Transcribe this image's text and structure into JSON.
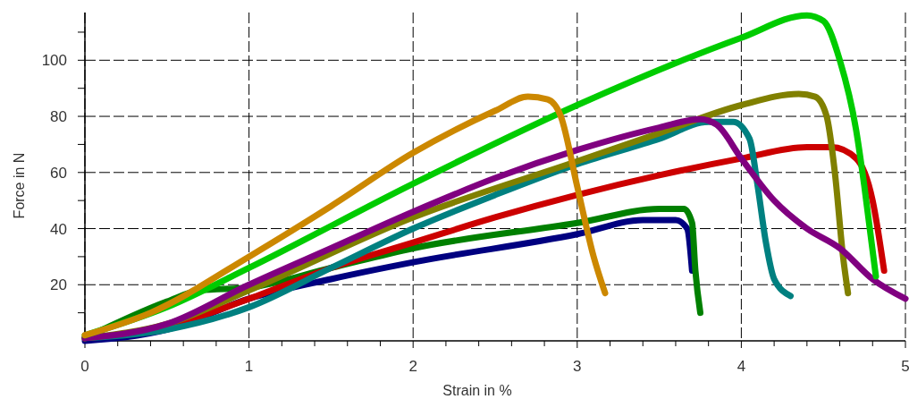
{
  "chart_data": {
    "type": "line",
    "xlabel": "Strain in %",
    "ylabel": "Force in N",
    "xlim": [
      0,
      5
    ],
    "ylim": [
      0,
      117
    ],
    "xticks": [
      0,
      {
        "value": 0.2,
        "label": null
      },
      {
        "value": 0.4,
        "label": null
      },
      {
        "value": 0.6,
        "label": null
      },
      {
        "value": 0.8,
        "label": null
      },
      1,
      {
        "value": 1.2,
        "label": null
      },
      {
        "value": 1.4,
        "label": null
      },
      {
        "value": 1.6,
        "label": null
      },
      {
        "value": 1.8,
        "label": null
      },
      2,
      {
        "value": 2.2,
        "label": null
      },
      {
        "value": 2.4,
        "label": null
      },
      {
        "value": 2.6,
        "label": null
      },
      {
        "value": 2.8,
        "label": null
      },
      3,
      {
        "value": 3.2,
        "label": null
      },
      {
        "value": 3.4,
        "label": null
      },
      {
        "value": 3.6,
        "label": null
      },
      {
        "value": 3.8,
        "label": null
      },
      4,
      {
        "value": 4.2,
        "label": null
      },
      {
        "value": 4.4,
        "label": null
      },
      {
        "value": 4.6,
        "label": null
      },
      {
        "value": 4.8,
        "label": null
      },
      5
    ],
    "yticks": [
      {
        "value": 10,
        "label": null
      },
      20,
      {
        "value": 30,
        "label": null
      },
      40,
      {
        "value": 50,
        "label": null
      },
      60,
      {
        "value": 70,
        "label": null
      },
      80,
      {
        "value": 90,
        "label": null
      },
      100,
      {
        "value": 110,
        "label": null
      }
    ],
    "grid": true,
    "marker": "none",
    "line_style": "solid",
    "series": [
      {
        "color": "#000080",
        "x": [
          0,
          0.5,
          1,
          1.5,
          2,
          3,
          3.4,
          3.6,
          3.67,
          3.7
        ],
        "values": [
          0,
          4,
          15,
          22,
          28,
          38,
          43,
          43,
          40,
          25
        ]
      },
      {
        "color": "#008000",
        "x": [
          0,
          0.5,
          0.7,
          1,
          1.5,
          2,
          3,
          3.5,
          3.65,
          3.7,
          3.72,
          3.75
        ],
        "values": [
          1,
          14,
          18,
          19,
          26,
          33,
          42,
          47,
          47,
          42,
          25,
          10
        ]
      },
      {
        "color": "#cc0000",
        "x": [
          0,
          0.5,
          1,
          1.5,
          2,
          2.5,
          3,
          3.5,
          4,
          4.4,
          4.55,
          4.7,
          4.8,
          4.87
        ],
        "values": [
          1,
          5,
          15,
          26,
          35,
          44,
          52,
          59,
          65,
          69,
          69,
          65,
          50,
          25
        ]
      },
      {
        "color": "#008080",
        "x": [
          0,
          0.5,
          1,
          1.5,
          2,
          2.5,
          3,
          3.5,
          3.8,
          3.95,
          4.05,
          4.1,
          4.15,
          4.2,
          4.3
        ],
        "values": [
          1,
          4,
          12,
          26,
          40,
          52,
          63,
          72,
          78,
          78,
          72,
          55,
          35,
          22,
          16
        ]
      },
      {
        "color": "#808000",
        "x": [
          0,
          0.5,
          1,
          2,
          3,
          3.5,
          4,
          4.35,
          4.45,
          4.52,
          4.57,
          4.62,
          4.65
        ],
        "values": [
          1,
          6,
          18,
          44,
          64,
          74,
          84,
          88,
          87,
          80,
          60,
          30,
          17
        ]
      },
      {
        "color": "#800080",
        "x": [
          0,
          0.5,
          1,
          1.5,
          2,
          2.5,
          3,
          3.5,
          3.75,
          3.85,
          4,
          4.2,
          4.4,
          4.6,
          4.8,
          5
        ],
        "values": [
          1,
          6,
          20,
          33,
          46,
          58,
          68,
          76,
          79,
          77,
          65,
          50,
          40,
          33,
          22,
          15
        ]
      },
      {
        "color": "#00cc00",
        "x": [
          0,
          0.5,
          1,
          2,
          3,
          4,
          4.4,
          4.5,
          4.6,
          4.7,
          4.75,
          4.82
        ],
        "values": [
          2,
          12,
          26,
          56,
          84,
          108,
          116,
          114,
          100,
          75,
          55,
          23
        ]
      },
      {
        "color": "#cc8800",
        "x": [
          0,
          0.4,
          1,
          1.5,
          2,
          2.5,
          2.7,
          2.82,
          2.9,
          3,
          3.1,
          3.17
        ],
        "values": [
          2,
          10,
          30,
          48,
          67,
          82,
          87,
          86,
          80,
          55,
          30,
          17
        ]
      }
    ]
  }
}
